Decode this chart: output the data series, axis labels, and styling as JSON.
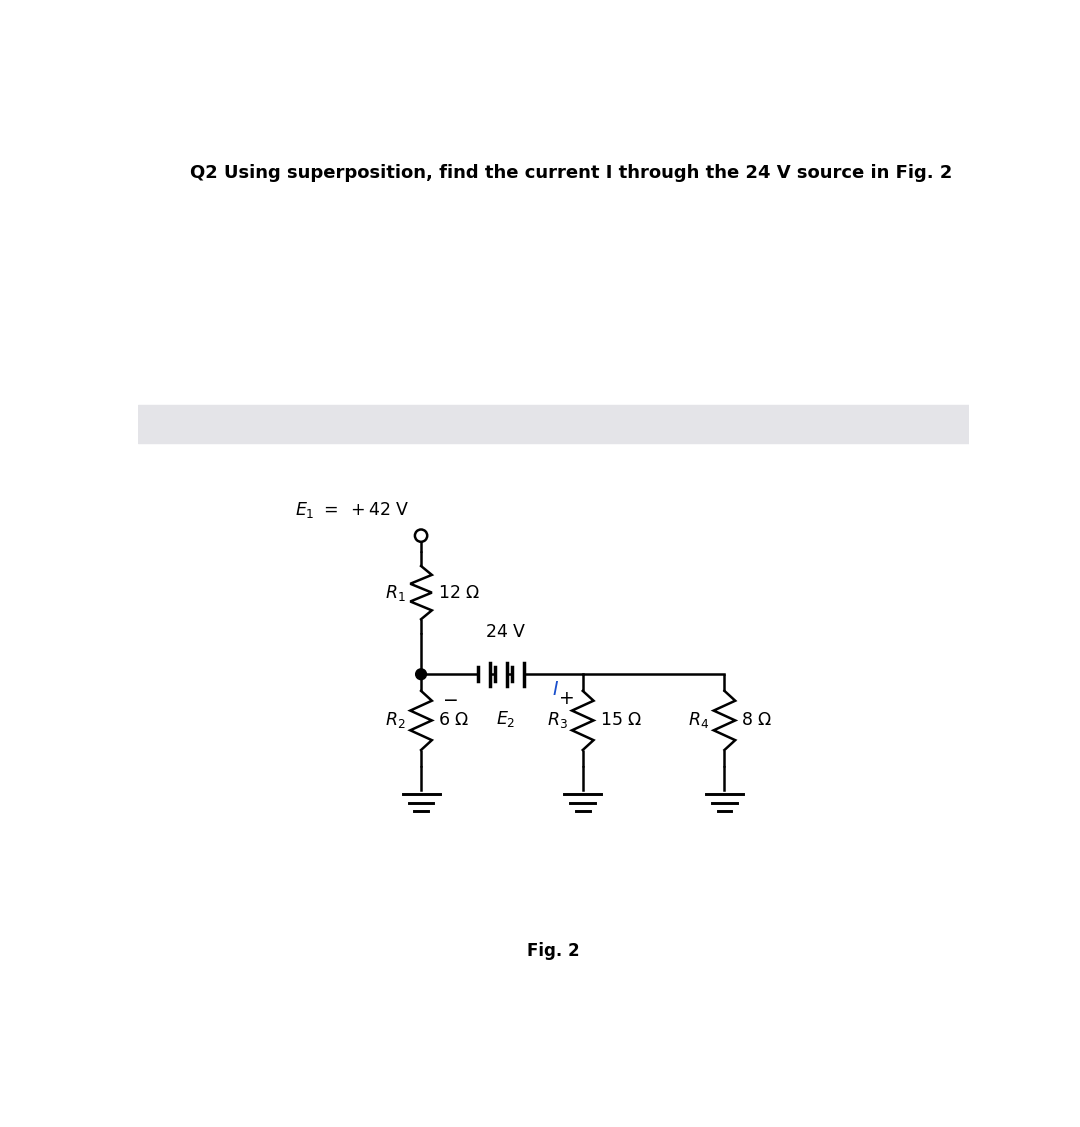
{
  "title": "Q2 Using superposition, find the current I through the 24 V source in Fig. 2",
  "fig_label": "Fig. 2",
  "title_fontsize": 13,
  "fig_label_fontsize": 12,
  "background_color": "#ffffff",
  "gray_band_color": "#e4e4e8",
  "circuit": {
    "wire_color": "#000000",
    "I_color": "#1a4fcc",
    "node_color": "#000000"
  }
}
